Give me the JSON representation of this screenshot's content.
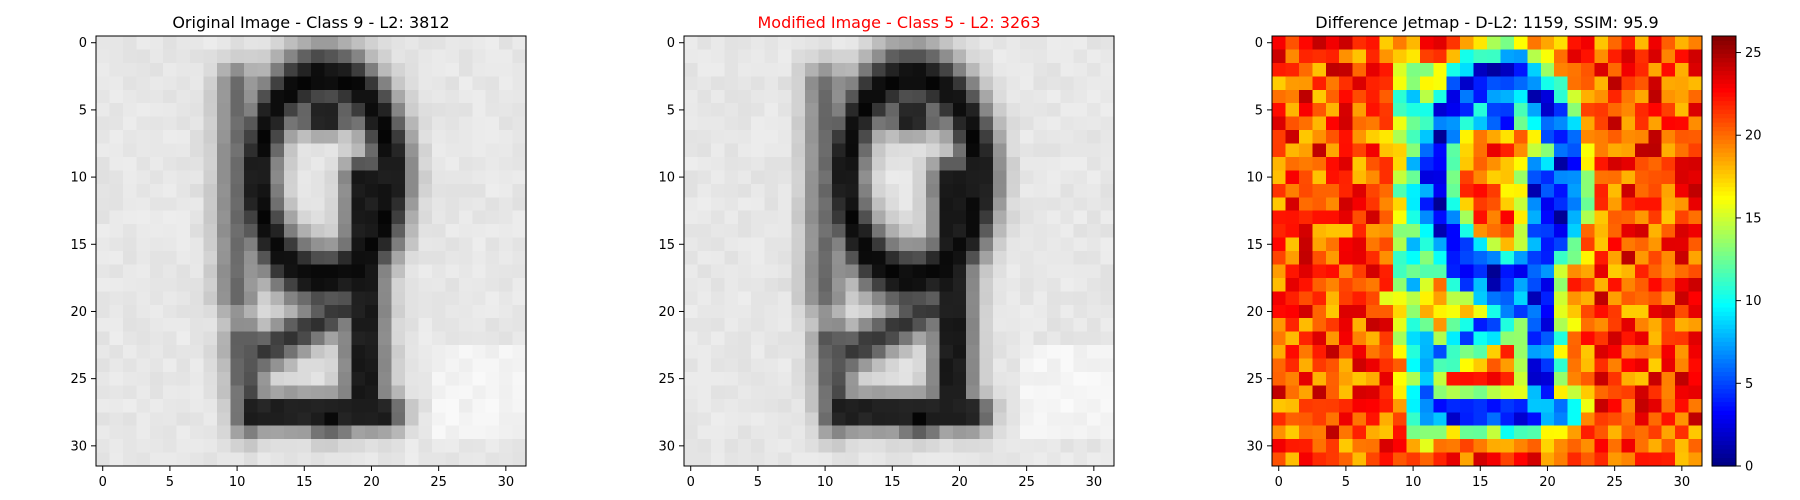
{
  "chart_data": [
    {
      "type": "heatmap",
      "title": "Original Image - Class 9 - L2: 3812",
      "title_color": "#000000",
      "colormap": "gray",
      "xlabel": "",
      "ylabel": "",
      "xlim": [
        -0.5,
        31.5
      ],
      "ylim": [
        31.5,
        -0.5
      ],
      "xticks": [
        "0",
        "5",
        "10",
        "15",
        "20",
        "25",
        "30"
      ],
      "yticks": [
        "0",
        "5",
        "10",
        "15",
        "20",
        "25",
        "30"
      ],
      "description": "32x32 grayscale image of the digit 9 (intensity 0=black to 1=white)"
    },
    {
      "type": "heatmap",
      "title": "Modified Image - Class 5 - L2: 3263",
      "title_color": "#ff0000",
      "colormap": "gray",
      "xlabel": "",
      "ylabel": "",
      "xlim": [
        -0.5,
        31.5
      ],
      "ylim": [
        31.5,
        -0.5
      ],
      "xticks": [
        "0",
        "5",
        "10",
        "15",
        "20",
        "25",
        "30"
      ],
      "yticks": [
        "0",
        "5",
        "10",
        "15",
        "20",
        "25",
        "30"
      ],
      "description": "32x32 grayscale adversarially modified image, visually nearly identical to the original"
    },
    {
      "type": "heatmap",
      "title": "Difference Jetmap - D-L2: 1159, SSIM: 95.9",
      "title_color": "#000000",
      "colormap": "jet",
      "xlabel": "",
      "ylabel": "",
      "xlim": [
        -0.5,
        31.5
      ],
      "ylim": [
        31.5,
        -0.5
      ],
      "xticks": [
        "0",
        "5",
        "10",
        "15",
        "20",
        "25",
        "30"
      ],
      "yticks": [
        "0",
        "5",
        "10",
        "15",
        "20",
        "25",
        "30"
      ],
      "colorbar": {
        "range": [
          0,
          26
        ],
        "ticks": [
          "0",
          "5",
          "10",
          "15",
          "20",
          "25"
        ]
      },
      "description": "32x32 difference map; low values (blue) along the digit stroke, high values (red) in background"
    }
  ]
}
